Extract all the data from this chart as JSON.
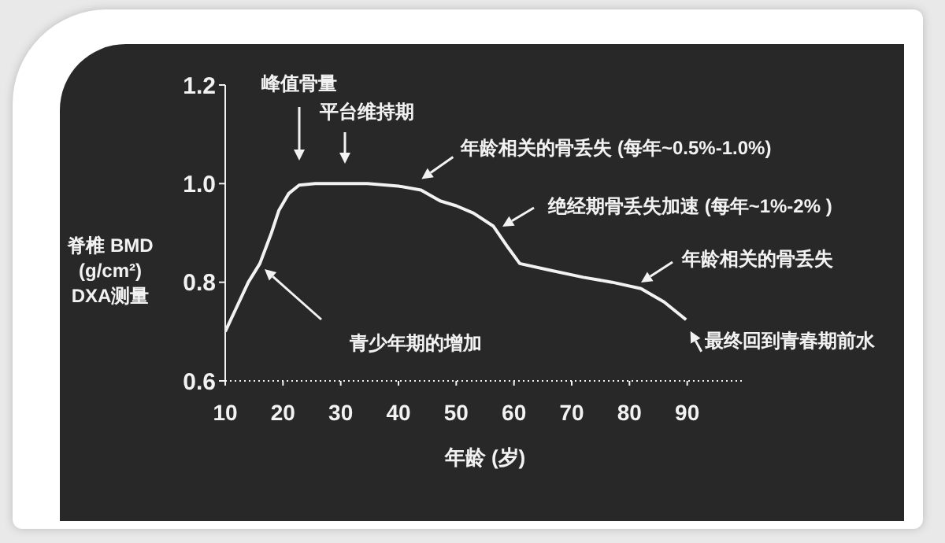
{
  "chart_data": {
    "type": "line",
    "xlabel": "年龄 (岁)",
    "ylabel": "脊椎 BMD\n(g/cm²)\nDXA测量",
    "x": [
      10,
      12,
      14,
      16,
      18,
      19.3,
      21,
      22.8,
      25.6,
      30,
      34.6,
      40,
      43.9,
      47.2,
      50,
      53,
      56.4,
      59,
      61,
      66,
      72,
      77,
      82,
      86,
      89.8
    ],
    "series": [
      {
        "color": "#f2f2f2",
        "values": [
          0.7,
          0.75,
          0.8,
          0.838,
          0.9,
          0.946,
          0.98,
          0.997,
          1.0,
          1.0,
          1.0,
          0.995,
          0.987,
          0.965,
          0.955,
          0.94,
          0.914,
          0.87,
          0.838,
          0.825,
          0.81,
          0.8,
          0.787,
          0.76,
          0.724
        ]
      }
    ],
    "xlim": [
      10,
      100
    ],
    "xticks": [
      10,
      20,
      30,
      40,
      50,
      60,
      70,
      80,
      90
    ],
    "ylim": [
      0.6,
      1.2
    ],
    "yticks": [
      {
        "value": 0.6,
        "label": "0.6"
      },
      {
        "value": 0.8,
        "label": "0.8"
      },
      {
        "value": 1.0,
        "label": "1.0"
      },
      {
        "value": 1.2,
        "label": "1.2"
      }
    ],
    "grid": false,
    "legend": false,
    "marker": "none",
    "line_style": "solid",
    "annotations": [
      "峰值骨量",
      "平台维持期",
      {
        "text": "年龄相关的骨丢失 (每年~0.5%-1.0%)",
        "x": 44,
        "y": 0.99
      },
      {
        "text": "绝经期骨丢失加速 (每年~1%-2% )",
        "x": 58,
        "y": 0.9
      },
      {
        "text": "年龄相关的骨丢失",
        "x": 82,
        "y": 0.79
      },
      {
        "text": "最终回到青春期前水",
        "x": 90,
        "y": 0.72
      },
      "青少年期的增加"
    ]
  }
}
